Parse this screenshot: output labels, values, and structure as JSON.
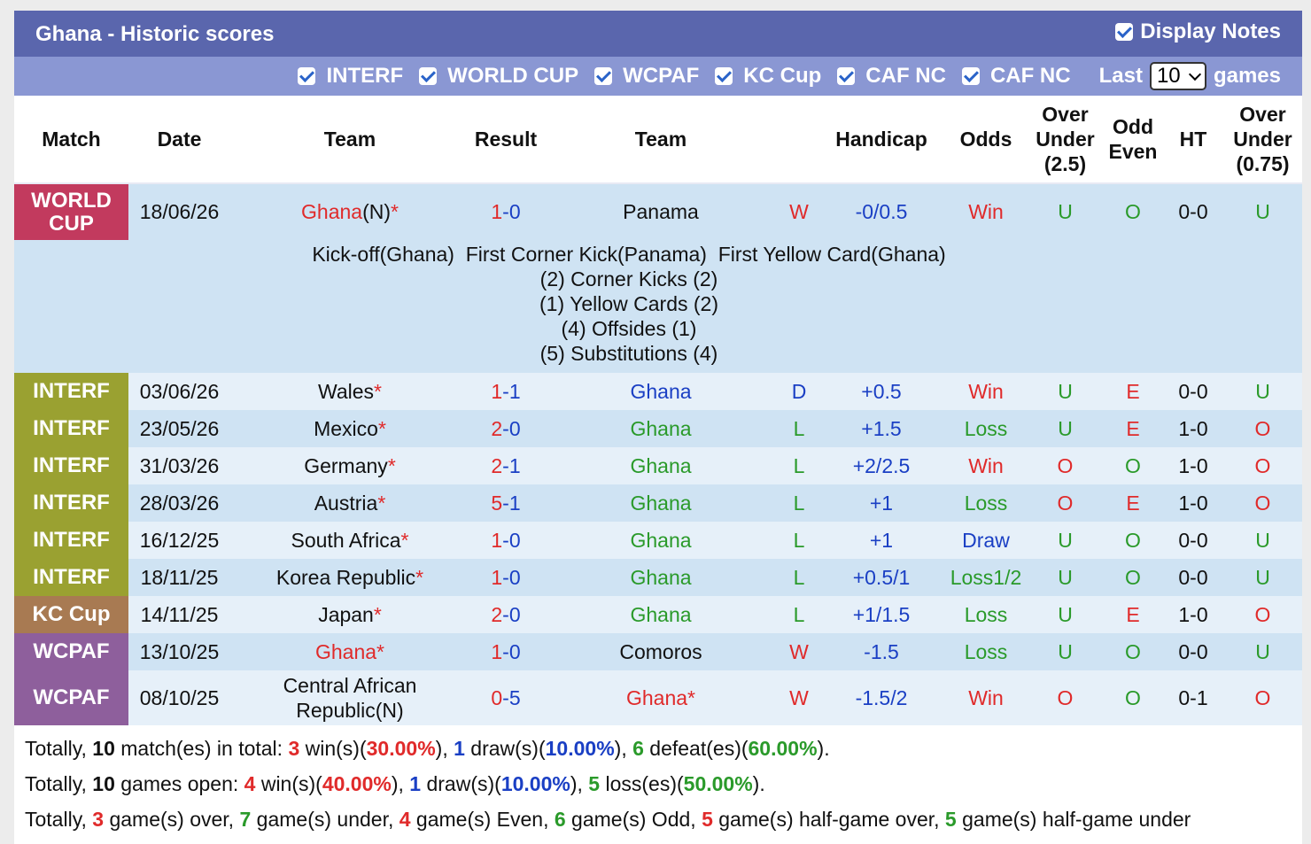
{
  "header": {
    "title": "Ghana - Historic scores",
    "display_notes": "Display Notes"
  },
  "filters": {
    "items": [
      "INTERF",
      "WORLD CUP",
      "WCPAF",
      "KC Cup",
      "CAF NC",
      "CAF NC"
    ],
    "last_label": "Last",
    "last_value": "10",
    "games_label": "games"
  },
  "columns": {
    "match": "Match",
    "date": "Date",
    "team": "Team",
    "result": "Result",
    "team2": "Team",
    "handicap": "Handicap",
    "odds": "Odds",
    "ou1": "Over",
    "ou2": "Under",
    "ou3": "(2.5)",
    "oe1": "Odd",
    "oe2": "Even",
    "ht": "HT",
    "ou75a": "Over",
    "ou75b": "Under",
    "ou75c": "(0.75)"
  },
  "league_colors": {
    "WORLD CUP": "#c23a5e",
    "INTERF": "#9aa131",
    "KC Cup": "#a87a52",
    "WCPAF": "#8e5f9c"
  },
  "rows": [
    {
      "league": "WORLD CUP",
      "league_l1": "WORLD",
      "league_l2": "CUP",
      "date": "18/06/26",
      "home": "Ghana",
      "home_suffix": "(N)",
      "home_star": "*",
      "home_red": true,
      "h": "1",
      "a": "0",
      "away": "Panama",
      "away_star": "",
      "away_red": false,
      "wdl": "W",
      "hcp": "-0/0.5",
      "odds": "Win",
      "ou": "U",
      "oe": "O",
      "ht": "0-0",
      "ou75": "U"
    },
    {
      "league": "INTERF",
      "league_l1": "INTERF",
      "league_l2": "",
      "date": "03/06/26",
      "home": "Wales",
      "home_suffix": "",
      "home_star": "*",
      "home_red": false,
      "h": "1",
      "a": "1",
      "away": "Ghana",
      "away_star": "",
      "away_red": false,
      "wdl": "D",
      "hcp": "+0.5",
      "odds": "Win",
      "ou": "U",
      "oe": "E",
      "ht": "0-0",
      "ou75": "U"
    },
    {
      "league": "INTERF",
      "league_l1": "INTERF",
      "league_l2": "",
      "date": "23/05/26",
      "home": "Mexico",
      "home_suffix": "",
      "home_star": "*",
      "home_red": false,
      "h": "2",
      "a": "0",
      "away": "Ghana",
      "away_star": "",
      "away_red": false,
      "wdl": "L",
      "hcp": "+1.5",
      "odds": "Loss",
      "ou": "U",
      "oe": "E",
      "ht": "1-0",
      "ou75": "O"
    },
    {
      "league": "INTERF",
      "league_l1": "INTERF",
      "league_l2": "",
      "date": "31/03/26",
      "home": "Germany",
      "home_suffix": "",
      "home_star": "*",
      "home_red": false,
      "h": "2",
      "a": "1",
      "away": "Ghana",
      "away_star": "",
      "away_red": false,
      "wdl": "L",
      "hcp": "+2/2.5",
      "odds": "Win",
      "ou": "O",
      "oe": "O",
      "ht": "1-0",
      "ou75": "O"
    },
    {
      "league": "INTERF",
      "league_l1": "INTERF",
      "league_l2": "",
      "date": "28/03/26",
      "home": "Austria",
      "home_suffix": "",
      "home_star": "*",
      "home_red": false,
      "h": "5",
      "a": "1",
      "away": "Ghana",
      "away_star": "",
      "away_red": false,
      "wdl": "L",
      "hcp": "+1",
      "odds": "Loss",
      "ou": "O",
      "oe": "E",
      "ht": "1-0",
      "ou75": "O"
    },
    {
      "league": "INTERF",
      "league_l1": "INTERF",
      "league_l2": "",
      "date": "16/12/25",
      "home": "South Africa",
      "home_suffix": "",
      "home_star": "*",
      "home_red": false,
      "h": "1",
      "a": "0",
      "away": "Ghana",
      "away_star": "",
      "away_red": false,
      "wdl": "L",
      "hcp": "+1",
      "odds": "Draw",
      "ou": "U",
      "oe": "O",
      "ht": "0-0",
      "ou75": "U"
    },
    {
      "league": "INTERF",
      "league_l1": "INTERF",
      "league_l2": "",
      "date": "18/11/25",
      "home": "Korea Republic",
      "home_suffix": "",
      "home_star": "*",
      "home_red": false,
      "h": "1",
      "a": "0",
      "away": "Ghana",
      "away_star": "",
      "away_red": false,
      "wdl": "L",
      "hcp": "+0.5/1",
      "odds": "Loss1/2",
      "ou": "U",
      "oe": "O",
      "ht": "0-0",
      "ou75": "U"
    },
    {
      "league": "KC Cup",
      "league_l1": "KC Cup",
      "league_l2": "",
      "date": "14/11/25",
      "home": "Japan",
      "home_suffix": "",
      "home_star": "*",
      "home_red": false,
      "h": "2",
      "a": "0",
      "away": "Ghana",
      "away_star": "",
      "away_red": false,
      "wdl": "L",
      "hcp": "+1/1.5",
      "odds": "Loss",
      "ou": "U",
      "oe": "E",
      "ht": "1-0",
      "ou75": "O"
    },
    {
      "league": "WCPAF",
      "league_l1": "WCPAF",
      "league_l2": "",
      "date": "13/10/25",
      "home": "Ghana",
      "home_suffix": "",
      "home_star": "*",
      "home_red": true,
      "h": "1",
      "a": "0",
      "away": "Comoros",
      "away_star": "",
      "away_red": false,
      "wdl": "W",
      "hcp": "-1.5",
      "odds": "Loss",
      "ou": "U",
      "oe": "O",
      "ht": "0-0",
      "ou75": "U"
    },
    {
      "league": "WCPAF",
      "league_l1": "WCPAF",
      "league_l2": "",
      "date": "08/10/25",
      "home": "Central African Republic(N)",
      "home_suffix": "",
      "home_star": "",
      "home_red": false,
      "h": "0",
      "a": "5",
      "away": "Ghana",
      "away_star": "*",
      "away_red": true,
      "wdl": "W",
      "hcp": "-1.5/2",
      "odds": "Win",
      "ou": "O",
      "oe": "O",
      "ht": "0-1",
      "ou75": "O"
    }
  ],
  "match_notes": {
    "line1": "Kick-off(Ghana)  First Corner Kick(Panama)  First Yellow Card(Ghana)",
    "line2": "(2) Corner Kicks (2)",
    "line3": "(1) Yellow Cards (2)",
    "line4": "(4) Offsides (1)",
    "line5": "(5) Substitutions (4)"
  },
  "summary": {
    "l1": {
      "a": "Totally, ",
      "n": "10",
      "b": " match(es) in total: ",
      "w": "3",
      "c": " win(s)(",
      "wp": "30.00%",
      "d": "), ",
      "dn": "1",
      "e": " draw(s)(",
      "dp": "10.00%",
      "f": "), ",
      "ln": "6",
      "g": " defeat(es)(",
      "lp": "60.00%",
      "h": ")."
    },
    "l2": {
      "a": "Totally, ",
      "n": "10",
      "b": " games open: ",
      "w": "4",
      "c": " win(s)(",
      "wp": "40.00%",
      "d": "), ",
      "dn": "1",
      "e": " draw(s)(",
      "dp": "10.00%",
      "f": "), ",
      "ln": "5",
      "g": " loss(es)(",
      "lp": "50.00%",
      "h": ")."
    },
    "l3": {
      "a": "Totally, ",
      "o": "3",
      "b": " game(s) over, ",
      "u": "7",
      "c": " game(s) under, ",
      "e": "4",
      "d": " game(s) Even, ",
      "od": "6",
      "f": " game(s) Odd, ",
      "ho": "5",
      "g": " game(s) half-game over, ",
      "hu": "5",
      "h": " game(s) half-game under"
    }
  }
}
